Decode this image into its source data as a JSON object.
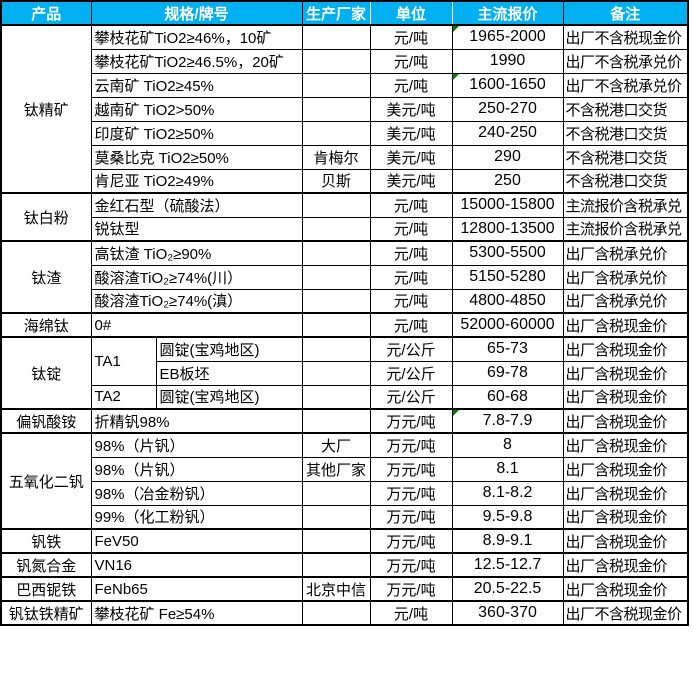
{
  "colors": {
    "header_bg": "#00B0F0",
    "header_text": "#FFFFFF",
    "grid": "#000000",
    "comment_flag_green": "#007A00",
    "page_background": "#FFFFFF"
  },
  "table": {
    "columns": [
      {
        "key": "product",
        "label": "产品"
      },
      {
        "key": "spec",
        "label": "规格/牌号"
      },
      {
        "key": "maker",
        "label": "生产厂家"
      },
      {
        "key": "unit",
        "label": "单位"
      },
      {
        "key": "price",
        "label": "主流报价"
      },
      {
        "key": "remark",
        "label": "备注"
      }
    ],
    "rows": [
      {
        "section": true,
        "product": {
          "label": "钛精矿",
          "rowspan": 7
        },
        "spec": {
          "text": "攀枝花矿TiO2≥46%，10矿",
          "colspan": 2
        },
        "maker": "",
        "unit": "元/吨",
        "price": "1965-2000",
        "flag": true,
        "remark": "出厂不含税现金价"
      },
      {
        "section": false,
        "spec": {
          "text": "攀枝花矿TiO2≥46.5%，20矿",
          "colspan": 2
        },
        "maker": "",
        "unit": "元/吨",
        "price": "1990",
        "flag": false,
        "remark": "出厂不含税承兑价"
      },
      {
        "section": false,
        "spec": {
          "text": "云南矿 TiO2≥45%",
          "colspan": 2
        },
        "maker": "",
        "unit": "元/吨",
        "price": "1600-1650",
        "flag": true,
        "remark": "出厂不含税承兑价"
      },
      {
        "section": false,
        "spec": {
          "text": "越南矿 TiO2>50%",
          "colspan": 2
        },
        "maker": "",
        "unit": "美元/吨",
        "price": "250-270",
        "flag": false,
        "remark": "不含税港口交货"
      },
      {
        "section": false,
        "spec": {
          "text": "印度矿 TiO2≥50%",
          "colspan": 2
        },
        "maker": "",
        "unit": "美元/吨",
        "price": "240-250",
        "flag": false,
        "remark": "不含税港口交货"
      },
      {
        "section": false,
        "spec": {
          "text": "莫桑比克 TiO2≥50%",
          "colspan": 2
        },
        "maker": "肯梅尔",
        "unit": "美元/吨",
        "price": "290",
        "flag": false,
        "remark": "不含税港口交货"
      },
      {
        "section": false,
        "spec": {
          "text": "肯尼亚 TiO2≥49%",
          "colspan": 2
        },
        "maker": "贝斯",
        "unit": "美元/吨",
        "price": "250",
        "flag": false,
        "remark": "不含税港口交货"
      },
      {
        "section": true,
        "product": {
          "label": "钛白粉",
          "rowspan": 2
        },
        "spec": {
          "text": "金红石型（硫酸法）",
          "colspan": 2
        },
        "maker": "",
        "unit": "元/吨",
        "price": "15000-15800",
        "flag": false,
        "remark": "主流报价含税承兑"
      },
      {
        "section": false,
        "spec": {
          "text": "锐钛型",
          "colspan": 2
        },
        "maker": "",
        "unit": "元/吨",
        "price": "12800-13500",
        "flag": false,
        "remark": "主流报价含税承兑"
      },
      {
        "section": true,
        "product": {
          "label": "钛渣",
          "rowspan": 3
        },
        "spec": {
          "text": "高钛渣 TiO₂≥90%",
          "colspan": 2
        },
        "maker": "",
        "unit": "元/吨",
        "price": "5300-5500",
        "flag": false,
        "remark": "出厂含税承兑价"
      },
      {
        "section": false,
        "spec": {
          "text": "酸溶渣TiO₂≥74%(川）",
          "colspan": 2
        },
        "maker": "",
        "unit": "元/吨",
        "price": "5150-5280",
        "flag": false,
        "remark": "出厂含税承兑价"
      },
      {
        "section": false,
        "spec": {
          "text": "酸溶渣TiO₂≥74%(滇）",
          "colspan": 2
        },
        "maker": "",
        "unit": "元/吨",
        "price": "4800-4850",
        "flag": false,
        "remark": "出厂含税承兑价"
      },
      {
        "section": true,
        "product": {
          "label": "海绵钛",
          "rowspan": 1
        },
        "spec": {
          "text": "0#",
          "colspan": 2
        },
        "maker": "",
        "unit": "元/吨",
        "price": "52000-60000",
        "flag": false,
        "remark": "出厂含税现金价"
      },
      {
        "section": true,
        "product": {
          "label": "钛锭",
          "rowspan": 3
        },
        "spec": {
          "text": "TA1",
          "rowspan": 2
        },
        "spec2": "圆锭(宝鸡地区)",
        "maker": "",
        "unit": "元/公斤",
        "price": "65-73",
        "flag": false,
        "remark": "出厂含税现金价"
      },
      {
        "section": false,
        "spec2": "EB板坯",
        "maker": "",
        "unit": "元/公斤",
        "price": "69-78",
        "flag": false,
        "remark": "出厂含税现金价"
      },
      {
        "section": false,
        "spec": {
          "text": "TA2"
        },
        "spec2": "圆锭(宝鸡地区)",
        "maker": "",
        "unit": "元/公斤",
        "price": "60-68",
        "flag": false,
        "remark": "出厂含税现金价"
      },
      {
        "section": true,
        "product": {
          "label": "偏钒酸铵",
          "rowspan": 1
        },
        "spec": {
          "text": "折精钒98%",
          "colspan": 2
        },
        "maker": "",
        "unit": "万元/吨",
        "price": "7.8-7.9",
        "flag": true,
        "remark": "出厂含税现金价"
      },
      {
        "section": true,
        "product": {
          "label": "五氧化二钒",
          "rowspan": 4
        },
        "spec": {
          "text": "98%（片钒）",
          "colspan": 2
        },
        "maker": "大厂",
        "unit": "万元/吨",
        "price": "8",
        "flag": false,
        "remark": "出厂含税现金价"
      },
      {
        "section": false,
        "spec": {
          "text": "98%（片钒）",
          "colspan": 2
        },
        "maker": "其他厂家",
        "unit": "万元/吨",
        "price": "8.1",
        "flag": false,
        "remark": "出厂含税现金价"
      },
      {
        "section": false,
        "spec": {
          "text": "98%（冶金粉钒）",
          "colspan": 2
        },
        "maker": "",
        "unit": "万元/吨",
        "price": "8.1-8.2",
        "flag": false,
        "remark": "出厂含税现金价"
      },
      {
        "section": false,
        "spec": {
          "text": "99%（化工粉钒）",
          "colspan": 2
        },
        "maker": "",
        "unit": "万元/吨",
        "price": "9.5-9.8",
        "flag": false,
        "remark": "出厂含税现金价"
      },
      {
        "section": true,
        "product": {
          "label": "钒铁",
          "rowspan": 1
        },
        "spec": {
          "text": "FeV50",
          "colspan": 2
        },
        "maker": "",
        "unit": "万元/吨",
        "price": "8.9-9.1",
        "flag": false,
        "remark": "出厂含税现金价"
      },
      {
        "section": true,
        "product": {
          "label": "钒氮合金",
          "rowspan": 1
        },
        "spec": {
          "text": "VN16",
          "colspan": 2
        },
        "maker": "",
        "unit": "万元/吨",
        "price": "12.5-12.7",
        "flag": false,
        "remark": "出厂含税现金价"
      },
      {
        "section": true,
        "product": {
          "label": "巴西铌铁",
          "rowspan": 1
        },
        "spec": {
          "text": "FeNb65",
          "colspan": 2
        },
        "maker": "北京中信",
        "unit": "万元/吨",
        "price": "20.5-22.5",
        "flag": false,
        "remark": "出厂含税现金价"
      },
      {
        "section": true,
        "product": {
          "label": "钒钛铁精矿",
          "rowspan": 1
        },
        "spec": {
          "text": "攀枝花矿 Fe≥54%",
          "colspan": 2
        },
        "maker": "",
        "unit": "元/吨",
        "price": "360-370",
        "flag": false,
        "remark": "出厂不含税现金价"
      }
    ]
  }
}
